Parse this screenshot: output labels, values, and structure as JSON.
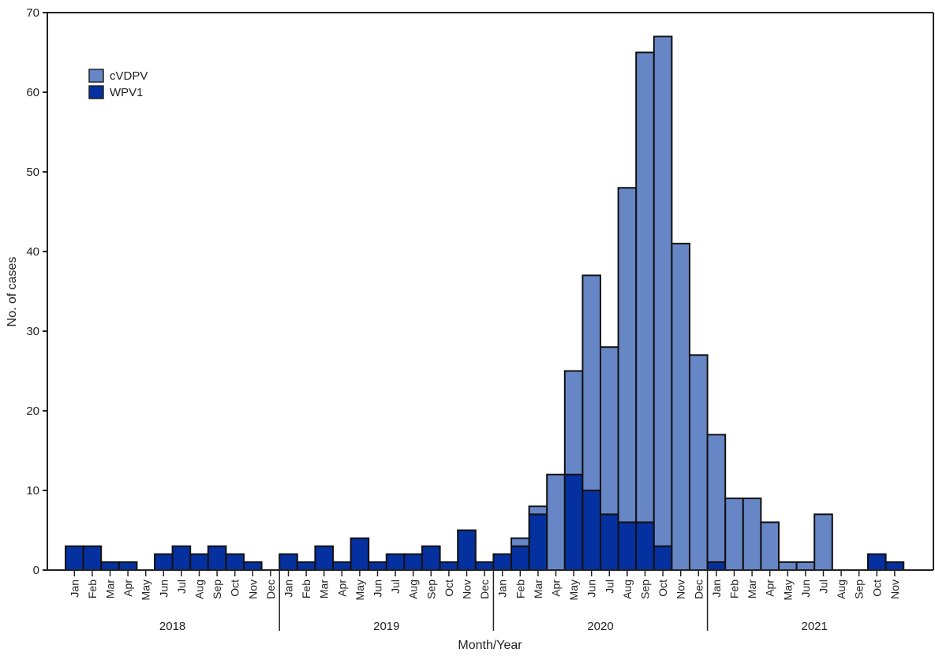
{
  "chart_data": {
    "type": "bar",
    "stacked": true,
    "xlabel": "Month/Year",
    "ylabel": "No. of cases",
    "ylim": [
      0,
      70
    ],
    "yticks": [
      0,
      10,
      20,
      30,
      40,
      50,
      60,
      70
    ],
    "grid": false,
    "legend_position": "top-left",
    "years": [
      "2018",
      "2019",
      "2020",
      "2021"
    ],
    "months": [
      "Jan",
      "Feb",
      "Mar",
      "Apr",
      "May",
      "Jun",
      "Jul",
      "Aug",
      "Sep",
      "Oct",
      "Nov",
      "Dec"
    ],
    "categories": [
      "Jan 2018",
      "Feb 2018",
      "Mar 2018",
      "Apr 2018",
      "May 2018",
      "Jun 2018",
      "Jul 2018",
      "Aug 2018",
      "Sep 2018",
      "Oct 2018",
      "Nov 2018",
      "Dec 2018",
      "Jan 2019",
      "Feb 2019",
      "Mar 2019",
      "Apr 2019",
      "May 2019",
      "Jun 2019",
      "Jul 2019",
      "Aug 2019",
      "Sep 2019",
      "Oct 2019",
      "Nov 2019",
      "Dec 2019",
      "Jan 2020",
      "Feb 2020",
      "Mar 2020",
      "Apr 2020",
      "May 2020",
      "Jun 2020",
      "Jul 2020",
      "Aug 2020",
      "Sep 2020",
      "Oct 2020",
      "Nov 2020",
      "Dec 2020",
      "Jan 2021",
      "Feb 2021",
      "Mar 2021",
      "Apr 2021",
      "May 2021",
      "Jun 2021",
      "Jul 2021",
      "Aug 2021",
      "Sep 2021",
      "Oct 2021",
      "Nov 2021"
    ],
    "series": [
      {
        "name": "WPV1",
        "color": "#0530a0",
        "values": [
          3,
          3,
          1,
          1,
          0,
          2,
          3,
          2,
          3,
          2,
          1,
          0,
          2,
          1,
          3,
          1,
          4,
          1,
          2,
          2,
          3,
          1,
          5,
          1,
          2,
          3,
          7,
          0,
          12,
          10,
          7,
          6,
          6,
          3,
          0,
          0,
          1,
          0,
          0,
          0,
          0,
          0,
          0,
          0,
          0,
          2,
          1
        ]
      },
      {
        "name": "cVDPV",
        "color": "#6686c6",
        "values": [
          0,
          0,
          0,
          0,
          0,
          0,
          0,
          0,
          0,
          0,
          0,
          0,
          0,
          0,
          0,
          0,
          0,
          0,
          0,
          0,
          0,
          0,
          0,
          0,
          0,
          1,
          1,
          12,
          13,
          27,
          21,
          42,
          59,
          64,
          41,
          27,
          16,
          9,
          9,
          6,
          1,
          1,
          7,
          0,
          0,
          0,
          0
        ]
      }
    ]
  }
}
